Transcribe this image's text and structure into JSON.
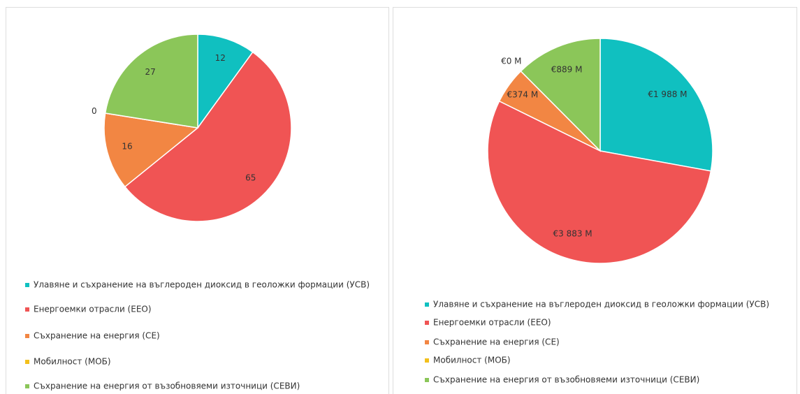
{
  "chart_data": [
    {
      "type": "pie",
      "categories": [
        "Улавяне и съхранение на въглероден диоксид в геоложки формации (УСВ)",
        "Енергоемки отрасли (ЕЕО)",
        "Съхранение на енергия (СЕ)",
        "Мобилност (МОБ)",
        "Съхранение на енергия от възобновяеми източници (СЕВИ)"
      ],
      "values": [
        12,
        65,
        16,
        0,
        27
      ],
      "colors": [
        "#10c0c0",
        "#f05454",
        "#f28643",
        "#f3c01c",
        "#8bc659"
      ],
      "legend": "bottom"
    },
    {
      "type": "pie",
      "categories": [
        "Улавяне и съхранение на въглероден диоксид в геоложки формации (УСВ)",
        "Енергоемки отрасли (ЕЕО)",
        "Съхранение на енергия (СЕ)",
        "Мобилност (МОБ)",
        "Съхранение на енергия от възобновяеми източници (СЕВИ)"
      ],
      "values": [
        1988,
        3883,
        374,
        0,
        889
      ],
      "value_labels": [
        "€1 988 M",
        "€3 883 M",
        "€374 M",
        "€0 M",
        "€889 M"
      ],
      "colors": [
        "#10c0c0",
        "#f05454",
        "#f28643",
        "#f3c01c",
        "#8bc659"
      ],
      "legend": "bottom"
    }
  ]
}
